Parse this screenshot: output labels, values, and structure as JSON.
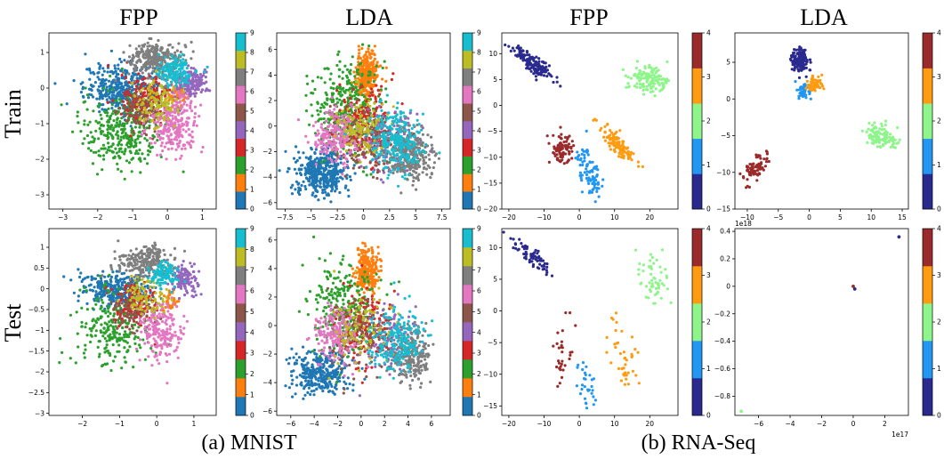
{
  "column_titles": [
    "FPP",
    "LDA",
    "FPP",
    "LDA"
  ],
  "row_labels": [
    "Train",
    "Test"
  ],
  "captions": [
    "(a) MNIST",
    "(b) RNA-Seq"
  ],
  "colormaps": {
    "mnist": [
      "#1f77b4",
      "#ff7f0e",
      "#2ca02c",
      "#d62728",
      "#9467bd",
      "#8c564b",
      "#e377c2",
      "#7f7f7f",
      "#bcbd22",
      "#17becf"
    ],
    "rna": [
      "#2a2a8e",
      "#2196f3",
      "#8ef58b",
      "#ff9b10",
      "#9b2a2a"
    ]
  },
  "chart_data": [
    {
      "type": "scatter",
      "dataset": "MNIST",
      "method": "FPP",
      "split": "Train",
      "xlim": [
        -3.4,
        1.4
      ],
      "ylim": [
        -3.4,
        1.55
      ],
      "xticks": [
        -3,
        -2,
        -1,
        0,
        1
      ],
      "yticks": [
        -3,
        -2,
        -1,
        0,
        1
      ],
      "colorbar": {
        "min": 0,
        "max": 9,
        "ticks": [
          0,
          1,
          2,
          3,
          4,
          5,
          6,
          7,
          8,
          9
        ],
        "colormap": "mnist"
      },
      "clusters": [
        {
          "label": 0,
          "cx": -1.3,
          "cy": 0.0,
          "sx": 0.55,
          "sy": 0.35,
          "n": 380
        },
        {
          "label": 1,
          "cx": 0.3,
          "cy": -0.2,
          "sx": 0.15,
          "sy": 0.15,
          "n": 60
        },
        {
          "label": 2,
          "cx": -1.3,
          "cy": -1.2,
          "sx": 0.6,
          "sy": 0.55,
          "n": 320
        },
        {
          "label": 3,
          "cx": -0.6,
          "cy": -0.3,
          "sx": 0.35,
          "sy": 0.35,
          "n": 160
        },
        {
          "label": 4,
          "cx": 0.7,
          "cy": 0.15,
          "sx": 0.25,
          "sy": 0.2,
          "n": 150
        },
        {
          "label": 5,
          "cx": -0.7,
          "cy": -0.6,
          "sx": 0.35,
          "sy": 0.3,
          "n": 110
        },
        {
          "label": 6,
          "cx": 0.2,
          "cy": -1.0,
          "sx": 0.35,
          "sy": 0.4,
          "n": 260
        },
        {
          "label": 7,
          "cx": -0.3,
          "cy": 0.8,
          "sx": 0.4,
          "sy": 0.25,
          "n": 300
        },
        {
          "label": 8,
          "cx": -0.3,
          "cy": -0.4,
          "sx": 0.3,
          "sy": 0.3,
          "n": 120
        },
        {
          "label": 9,
          "cx": 0.2,
          "cy": 0.45,
          "sx": 0.25,
          "sy": 0.2,
          "n": 150
        }
      ]
    },
    {
      "type": "scatter",
      "dataset": "MNIST",
      "method": "LDA",
      "split": "Train",
      "xlim": [
        -8.3,
        8.3
      ],
      "ylim": [
        -6.5,
        7.3
      ],
      "xticks": [
        -7.5,
        -5.0,
        -2.5,
        0.0,
        2.5,
        5.0,
        7.5
      ],
      "yticks": [
        -6,
        -4,
        -2,
        0,
        2,
        4,
        6
      ],
      "colorbar": {
        "min": 0,
        "max": 9,
        "ticks": [
          0,
          1,
          2,
          3,
          4,
          5,
          6,
          7,
          8,
          9
        ],
        "colormap": "mnist"
      },
      "clusters": [
        {
          "label": 0,
          "cx": -4.0,
          "cy": -3.6,
          "sx": 1.3,
          "sy": 0.9,
          "n": 420
        },
        {
          "label": 1,
          "cx": 0.3,
          "cy": 4.0,
          "sx": 0.5,
          "sy": 0.9,
          "n": 300
        },
        {
          "label": 2,
          "cx": -1.5,
          "cy": 1.5,
          "sx": 1.6,
          "sy": 1.8,
          "n": 350
        },
        {
          "label": 3,
          "cx": 0.2,
          "cy": 0.2,
          "sx": 1.3,
          "sy": 1.5,
          "n": 200
        },
        {
          "label": 4,
          "cx": 2.5,
          "cy": -1.3,
          "sx": 1.4,
          "sy": 1.4,
          "n": 160
        },
        {
          "label": 5,
          "cx": 0.0,
          "cy": -1.0,
          "sx": 1.6,
          "sy": 1.4,
          "n": 150
        },
        {
          "label": 6,
          "cx": -2.6,
          "cy": -0.8,
          "sx": 1.1,
          "sy": 1.1,
          "n": 220
        },
        {
          "label": 7,
          "cx": 4.5,
          "cy": -2.3,
          "sx": 1.0,
          "sy": 1.0,
          "n": 280
        },
        {
          "label": 8,
          "cx": 0.0,
          "cy": 0.0,
          "sx": 1.3,
          "sy": 1.3,
          "n": 120
        },
        {
          "label": 9,
          "cx": 3.0,
          "cy": -1.2,
          "sx": 1.2,
          "sy": 1.3,
          "n": 260
        }
      ]
    },
    {
      "type": "scatter",
      "dataset": "RNA-Seq",
      "method": "FPP",
      "split": "Train",
      "xlim": [
        -22,
        28
      ],
      "ylim": [
        -20,
        14
      ],
      "xticks": [
        -20,
        -10,
        0,
        10,
        20
      ],
      "yticks": [
        -20,
        -15,
        -10,
        -5,
        0,
        5,
        10
      ],
      "colorbar": {
        "min": 0,
        "max": 4,
        "ticks": [
          0,
          1,
          2,
          3,
          4
        ],
        "colormap": "rna"
      },
      "clusters": [
        {
          "label": 0,
          "cx": -13,
          "cy": 8,
          "sx": 3.0,
          "sy": 1.6,
          "rho": -0.85,
          "n": 160
        },
        {
          "label": 1,
          "cx": 3,
          "cy": -13,
          "sx": 1.8,
          "sy": 2.6,
          "rho": -0.6,
          "n": 85
        },
        {
          "label": 2,
          "cx": 20,
          "cy": 5,
          "sx": 2.8,
          "sy": 1.4,
          "n": 130
        },
        {
          "label": 3,
          "cx": 11,
          "cy": -7.5,
          "sx": 2.4,
          "sy": 1.8,
          "rho": -0.85,
          "n": 110
        },
        {
          "label": 4,
          "cx": -5,
          "cy": -8.5,
          "sx": 1.6,
          "sy": 1.3,
          "n": 85
        }
      ]
    },
    {
      "type": "scatter",
      "dataset": "RNA-Seq",
      "method": "LDA",
      "split": "Train",
      "xlim": [
        -12,
        16
      ],
      "ylim": [
        -15,
        9
      ],
      "xticks": [
        -10,
        -5,
        0,
        5,
        10,
        15
      ],
      "yticks": [
        -15,
        -10,
        -5,
        0,
        5
      ],
      "colorbar": {
        "min": 0,
        "max": 4,
        "ticks": [
          0,
          1,
          2,
          3,
          4
        ],
        "colormap": "rna"
      },
      "clusters": [
        {
          "label": 0,
          "cx": -1.5,
          "cy": 5.2,
          "sx": 0.7,
          "sy": 0.9,
          "n": 140
        },
        {
          "label": 1,
          "cx": -0.8,
          "cy": 1.2,
          "sx": 0.5,
          "sy": 0.55,
          "n": 55
        },
        {
          "label": 2,
          "cx": 11.5,
          "cy": -5.0,
          "sx": 1.5,
          "sy": 0.9,
          "rho": -0.4,
          "n": 110
        },
        {
          "label": 3,
          "cx": 0.8,
          "cy": 2.0,
          "sx": 0.6,
          "sy": 0.55,
          "n": 60
        },
        {
          "label": 4,
          "cx": -8.8,
          "cy": -9.5,
          "sx": 1.0,
          "sy": 1.1,
          "rho": 0.6,
          "n": 80
        }
      ]
    },
    {
      "type": "scatter",
      "dataset": "MNIST",
      "method": "FPP",
      "split": "Test",
      "xlim": [
        -2.9,
        1.6
      ],
      "ylim": [
        -3.05,
        1.45
      ],
      "xticks": [
        -2,
        -1,
        0,
        1
      ],
      "yticks": [
        -3.0,
        -2.5,
        -2.0,
        -1.5,
        -1.0,
        -0.5,
        0.0,
        0.5,
        1.0
      ],
      "colorbar": {
        "min": 0,
        "max": 9,
        "ticks": [
          0,
          1,
          2,
          3,
          4,
          5,
          6,
          7,
          8,
          9
        ],
        "colormap": "mnist"
      },
      "clusters": [
        {
          "label": 0,
          "cx": -1.1,
          "cy": 0.0,
          "sx": 0.45,
          "sy": 0.2,
          "n": 300
        },
        {
          "label": 1,
          "cx": 0.3,
          "cy": -0.3,
          "sx": 0.15,
          "sy": 0.12,
          "n": 40
        },
        {
          "label": 2,
          "cx": -1.2,
          "cy": -0.9,
          "sx": 0.5,
          "sy": 0.5,
          "n": 240
        },
        {
          "label": 3,
          "cx": -0.6,
          "cy": -0.3,
          "sx": 0.3,
          "sy": 0.25,
          "n": 120
        },
        {
          "label": 4,
          "cx": 0.75,
          "cy": 0.2,
          "sx": 0.2,
          "sy": 0.18,
          "n": 120
        },
        {
          "label": 5,
          "cx": -0.7,
          "cy": -0.6,
          "sx": 0.3,
          "sy": 0.25,
          "n": 80
        },
        {
          "label": 6,
          "cx": 0.1,
          "cy": -1.0,
          "sx": 0.3,
          "sy": 0.35,
          "n": 200
        },
        {
          "label": 7,
          "cx": -0.3,
          "cy": 0.65,
          "sx": 0.35,
          "sy": 0.2,
          "n": 230
        },
        {
          "label": 8,
          "cx": -0.3,
          "cy": -0.2,
          "sx": 0.25,
          "sy": 0.25,
          "n": 90
        },
        {
          "label": 9,
          "cx": 0.2,
          "cy": 0.35,
          "sx": 0.2,
          "sy": 0.15,
          "n": 110
        }
      ]
    },
    {
      "type": "scatter",
      "dataset": "MNIST",
      "method": "LDA",
      "split": "Test",
      "xlim": [
        -7.2,
        7.6
      ],
      "ylim": [
        -6.3,
        6.8
      ],
      "xticks": [
        -6,
        -4,
        -2,
        0,
        2,
        4,
        6
      ],
      "yticks": [
        -6,
        -4,
        -2,
        0,
        2,
        4,
        6
      ],
      "colorbar": {
        "min": 0,
        "max": 9,
        "ticks": [
          0,
          1,
          2,
          3,
          4,
          5,
          6,
          7,
          8,
          9
        ],
        "colormap": "mnist"
      },
      "clusters": [
        {
          "label": 0,
          "cx": -3.5,
          "cy": -3.3,
          "sx": 1.2,
          "sy": 0.8,
          "n": 340
        },
        {
          "label": 1,
          "cx": 0.5,
          "cy": 3.8,
          "sx": 0.5,
          "sy": 0.8,
          "n": 240
        },
        {
          "label": 2,
          "cx": -1.5,
          "cy": 1.2,
          "sx": 1.5,
          "sy": 1.6,
          "n": 280
        },
        {
          "label": 3,
          "cx": 0.2,
          "cy": 0.0,
          "sx": 1.2,
          "sy": 1.3,
          "n": 160
        },
        {
          "label": 4,
          "cx": 2.5,
          "cy": -1.2,
          "sx": 1.2,
          "sy": 1.2,
          "n": 130
        },
        {
          "label": 5,
          "cx": 0.0,
          "cy": -1.0,
          "sx": 1.4,
          "sy": 1.3,
          "n": 120
        },
        {
          "label": 6,
          "cx": -2.2,
          "cy": -0.6,
          "sx": 1.0,
          "sy": 1.0,
          "n": 180
        },
        {
          "label": 7,
          "cx": 4.3,
          "cy": -2.0,
          "sx": 0.9,
          "sy": 0.9,
          "n": 230
        },
        {
          "label": 8,
          "cx": 0.0,
          "cy": 0.0,
          "sx": 1.2,
          "sy": 1.2,
          "n": 100
        },
        {
          "label": 9,
          "cx": 3.0,
          "cy": -1.0,
          "sx": 1.1,
          "sy": 1.2,
          "n": 210
        }
      ]
    },
    {
      "type": "scatter",
      "dataset": "RNA-Seq",
      "method": "FPP",
      "split": "Test",
      "xlim": [
        -22,
        28
      ],
      "ylim": [
        -16.5,
        13
      ],
      "xticks": [
        -20,
        -10,
        0,
        10,
        20
      ],
      "yticks": [
        -15,
        -10,
        -5,
        0,
        5,
        10
      ],
      "colorbar": {
        "min": 0,
        "max": 4,
        "ticks": [
          0,
          1,
          2,
          3,
          4
        ],
        "colormap": "rna"
      },
      "clusters": [
        {
          "label": 0,
          "cx": -13,
          "cy": 8.5,
          "sx": 3.0,
          "sy": 1.6,
          "rho": -0.85,
          "n": 70
        },
        {
          "label": 1,
          "cx": 2,
          "cy": -12,
          "sx": 1.8,
          "sy": 2.2,
          "rho": -0.3,
          "n": 30
        },
        {
          "label": 2,
          "cx": 21,
          "cy": 5,
          "sx": 2.5,
          "sy": 2.0,
          "n": 55
        },
        {
          "label": 3,
          "cx": 13,
          "cy": -7.5,
          "sx": 2.5,
          "sy": 3.0,
          "rho": -0.6,
          "n": 40
        },
        {
          "label": 4,
          "cx": -5,
          "cy": -7.5,
          "sx": 1.5,
          "sy": 2.8,
          "n": 30
        }
      ]
    },
    {
      "type": "scatter",
      "dataset": "RNA-Seq",
      "method": "LDA",
      "split": "Test",
      "xlim": [
        -7.5,
        3.5
      ],
      "ylim": [
        -0.94,
        0.42
      ],
      "xticks": [
        -6,
        -4,
        -2,
        0,
        2
      ],
      "yticks": [
        -0.8,
        -0.6,
        -0.4,
        -0.2,
        0.0,
        0.2,
        0.4
      ],
      "x_offset_label": "1e17",
      "y_offset_label": "1e18",
      "colorbar": {
        "min": 0,
        "max": 4,
        "ticks": [
          0,
          1,
          2,
          3,
          4
        ],
        "colormap": "rna"
      },
      "points": [
        {
          "x": 0.0,
          "y": 0.0,
          "label": 4
        },
        {
          "x": 0.1,
          "y": -0.02,
          "label": 0
        },
        {
          "x": 2.9,
          "y": 0.36,
          "label": 0
        },
        {
          "x": -7.1,
          "y": -0.91,
          "label": 2
        }
      ]
    }
  ]
}
